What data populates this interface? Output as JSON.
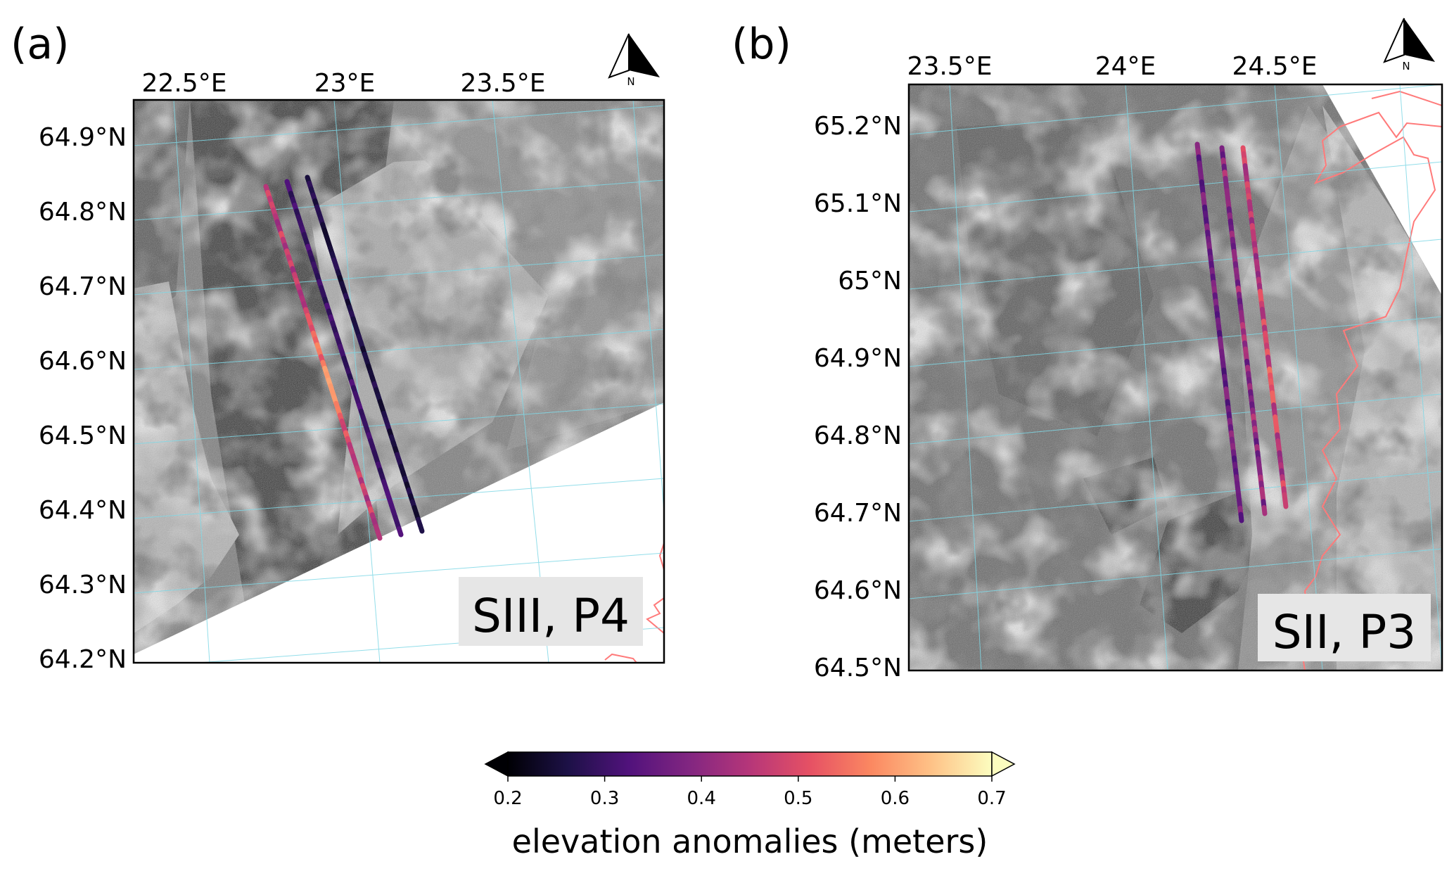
{
  "panels": [
    {
      "id": "a",
      "label": "(a)",
      "lon_ticks": [
        "22.5°E",
        "23°E",
        "23.5°E"
      ],
      "lat_ticks": [
        "64.9°N",
        "64.8°N",
        "64.7°N",
        "64.6°N",
        "64.5°N",
        "64.4°N",
        "64.3°N",
        "64.2°N"
      ],
      "annotation": "SIII, P4",
      "north_label": "N"
    },
    {
      "id": "b",
      "label": "(b)",
      "lon_ticks": [
        "23.5°E",
        "24°E",
        "24.5°E"
      ],
      "lat_ticks": [
        "65.2°N",
        "65.1°N",
        "65°N",
        "64.9°N",
        "64.8°N",
        "64.7°N",
        "64.6°N",
        "64.5°N"
      ],
      "annotation": "SII, P3",
      "north_label": "N"
    }
  ],
  "colorbar": {
    "ticks": [
      "0.2",
      "0.3",
      "0.4",
      "0.5",
      "0.6",
      "0.7"
    ],
    "label": "elevation anomalies (meters)",
    "range": [
      0.2,
      0.7
    ],
    "colormap": "magma",
    "colors": [
      "#000004",
      "#1d1147",
      "#51127c",
      "#822681",
      "#b63679",
      "#e65164",
      "#fb8861",
      "#fec287",
      "#fcfdbf"
    ]
  },
  "colors": {
    "grid": "#7fd8e6",
    "coastline": "#ff7a7a"
  }
}
